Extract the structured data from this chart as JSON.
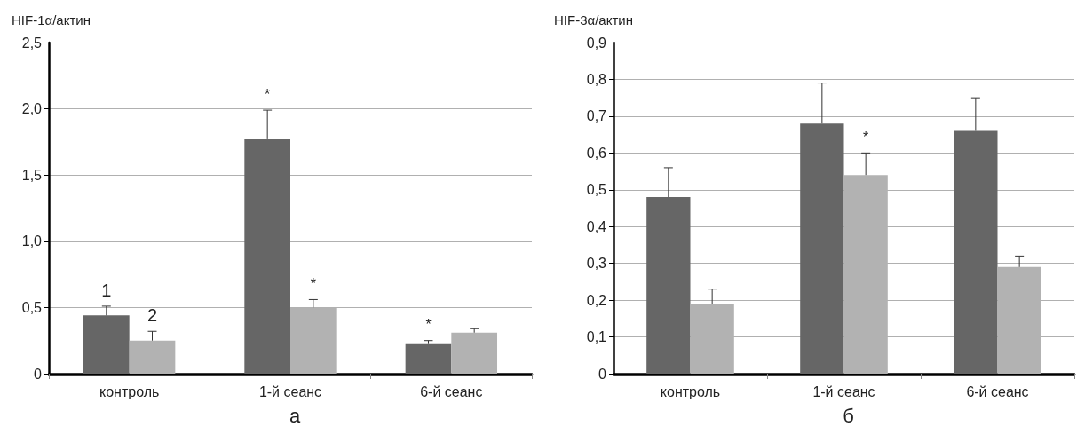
{
  "chart_data": [
    {
      "type": "bar",
      "ylabel": "HIF-1α/актин",
      "xlabel": "а",
      "categories": [
        "контроль",
        "1-й сеанс",
        "6-й сеанс"
      ],
      "series": [
        {
          "name": "1",
          "color": "#666666",
          "values": [
            0.44,
            1.77,
            0.23
          ],
          "errors": [
            [
              0.44,
              0.51
            ],
            [
              1.77,
              1.99
            ],
            [
              0.23,
              0.25
            ]
          ],
          "value_labels": [
            null,
            "*",
            "*"
          ]
        },
        {
          "name": "2",
          "color": "#b2b2b2",
          "values": [
            0.25,
            0.5,
            0.31
          ],
          "errors": [
            [
              0.25,
              0.32
            ],
            [
              0.5,
              0.56
            ],
            [
              0.31,
              0.34
            ]
          ],
          "value_labels": [
            null,
            "*",
            null
          ]
        }
      ],
      "ylim": [
        0,
        2.5
      ],
      "yticks": [
        0,
        {
          "value": 0.5,
          "label": "0,5"
        },
        {
          "value": 1,
          "label": "1,0"
        },
        {
          "value": 1.5,
          "label": "1,5"
        },
        {
          "value": 2,
          "label": "2,0"
        },
        {
          "value": 2.5,
          "label": "2,5"
        }
      ],
      "grid": "y",
      "legend": false
    },
    {
      "type": "bar",
      "ylabel": "HIF-3α/актин",
      "xlabel": "б",
      "categories": [
        "контроль",
        "1-й сеанс",
        "6-й сеанс"
      ],
      "series": [
        {
          "color": "#666666",
          "values": [
            0.48,
            0.68,
            0.66
          ],
          "errors": [
            [
              0.48,
              0.56
            ],
            [
              0.68,
              0.79
            ],
            [
              0.66,
              0.75
            ]
          ]
        },
        {
          "color": "#b2b2b2",
          "values": [
            0.19,
            0.54,
            0.29
          ],
          "errors": [
            [
              0.19,
              0.23
            ],
            [
              0.54,
              0.6
            ],
            [
              0.29,
              0.32
            ]
          ],
          "value_labels": [
            null,
            "*",
            null
          ]
        }
      ],
      "ylim": [
        0,
        0.9
      ],
      "yticks": [
        0,
        {
          "value": 0.1,
          "label": "0,1"
        },
        {
          "value": 0.2,
          "label": "0,2"
        },
        {
          "value": 0.3,
          "label": "0,3"
        },
        {
          "value": 0.4,
          "label": "0,4"
        },
        {
          "value": 0.5,
          "label": "0,5"
        },
        {
          "value": 0.6,
          "label": "0,6"
        },
        {
          "value": 0.7,
          "label": "0,7"
        },
        {
          "value": 0.8,
          "label": "0,8"
        },
        {
          "value": 0.9,
          "label": "0,9"
        }
      ],
      "grid": "y",
      "legend": false
    }
  ]
}
